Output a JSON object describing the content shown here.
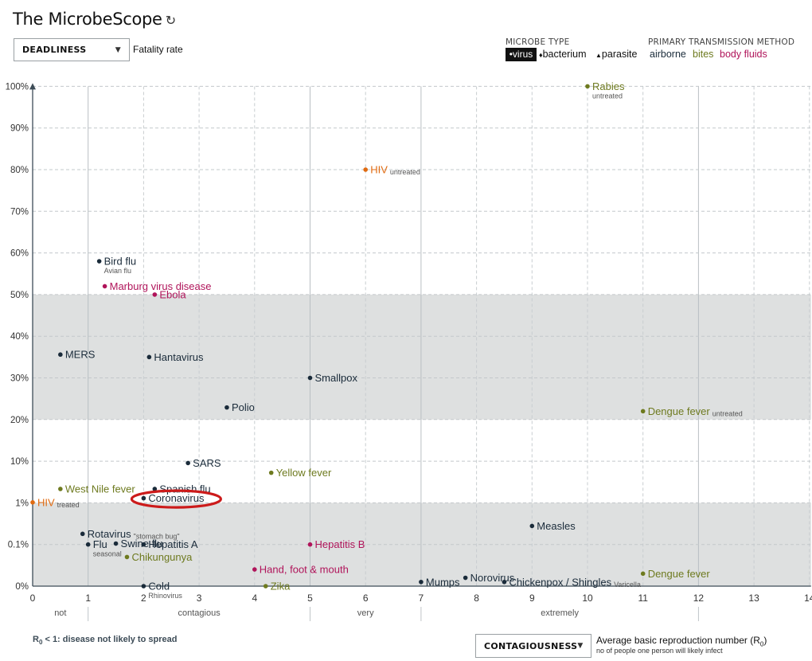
{
  "header": {
    "title": "The MicrobeScope",
    "refresh_icon": "↻"
  },
  "top_control": {
    "dropdown_value": "DEADLINESS",
    "label": "Fatality rate"
  },
  "legend": {
    "type_heading": "MICROBE TYPE",
    "types": [
      {
        "symbol": "•",
        "label": "virus"
      },
      {
        "symbol": "♦",
        "label": "bacterium"
      },
      {
        "symbol": "▲",
        "label": "parasite"
      }
    ],
    "transmission_heading": "PRIMARY TRANSMISSION METHOD",
    "transmissions": [
      {
        "label": "airborne",
        "color": "#1a2b3a"
      },
      {
        "label": "bites",
        "color": "#6e7a1f"
      },
      {
        "label": "body fluids",
        "color": "#b0145a"
      }
    ]
  },
  "bottom_control": {
    "dropdown_value": "CONTAGIOUSNESS",
    "label": "Average basic reproduction number (R",
    "label_sub": "0",
    "label_tail": ")",
    "sub_label": "no of people one person will likely infect"
  },
  "footnote": {
    "prefix": "R",
    "sub": "0",
    "text": " < 1: disease not likely to spread"
  },
  "chart_data": {
    "type": "scatter",
    "x_axis": {
      "range": [
        0,
        14
      ],
      "ticks": [
        "0",
        "1",
        "2",
        "3",
        "4",
        "5",
        "6",
        "7",
        "8",
        "9",
        "10",
        "11",
        "12",
        "13",
        "14"
      ],
      "category_labels": [
        {
          "text": "not",
          "at": 0.5
        },
        {
          "text": "contagious",
          "at": 3
        },
        {
          "text": "very",
          "at": 6
        },
        {
          "text": "extremely",
          "at": 9.5
        }
      ],
      "category_separators": [
        1,
        5,
        7,
        12
      ]
    },
    "y_axis": {
      "ticks": [
        "0%",
        "0.1%",
        "1%",
        "10%",
        "20%",
        "30%",
        "40%",
        "50%",
        "60%",
        "70%",
        "80%",
        "90%",
        "100%"
      ],
      "shaded_bands": [
        [
          0,
          1
        ],
        [
          20,
          50
        ]
      ]
    },
    "colors": {
      "airborne": "#1a2b3a",
      "bites": "#6e7a1f",
      "body_fluids": "#b0145a",
      "hiv": "#e06a10",
      "highlight": "#cc1b1b"
    },
    "points": [
      {
        "name": "Rabies",
        "note": "untreated",
        "x": 10,
        "y": 100,
        "method": "bites",
        "note_below": true
      },
      {
        "name": "HIV",
        "note": "untreated",
        "x": 6,
        "y": 80,
        "method": "hiv"
      },
      {
        "name": "Bird flu",
        "note": "Avian flu",
        "x": 1.2,
        "y": 58,
        "method": "airborne",
        "note_below": true
      },
      {
        "name": "Marburg virus disease",
        "x": 1.3,
        "y": 52,
        "method": "body_fluids"
      },
      {
        "name": "Ebola",
        "x": 2.2,
        "y": 50,
        "method": "body_fluids"
      },
      {
        "name": "MERS",
        "x": 0.5,
        "y": 35.6,
        "method": "airborne"
      },
      {
        "name": "Hantavirus",
        "x": 2.1,
        "y": 35,
        "method": "airborne"
      },
      {
        "name": "Smallpox",
        "x": 5,
        "y": 30,
        "method": "airborne"
      },
      {
        "name": "Polio",
        "x": 3.5,
        "y": 22.9,
        "method": "airborne"
      },
      {
        "name": "Dengue fever",
        "note": "untreated",
        "x": 11,
        "y": 22,
        "method": "bites"
      },
      {
        "name": "SARS",
        "x": 2.8,
        "y": 9.6,
        "method": "airborne"
      },
      {
        "name": "Yellow fever",
        "x": 4.3,
        "y": 7.5,
        "method": "bites"
      },
      {
        "name": "West Nile fever",
        "x": 0.5,
        "y": 4,
        "method": "bites"
      },
      {
        "name": "Spanish flu",
        "x": 2.2,
        "y": 4,
        "method": "airborne"
      },
      {
        "name": "Coronavirus",
        "x": 2,
        "y": 2,
        "method": "airborne",
        "highlight": true
      },
      {
        "name": "HIV",
        "note": "treated",
        "x": 0,
        "y": 1.1,
        "method": "hiv"
      },
      {
        "name": "Measles",
        "x": 9,
        "y": 0.5,
        "method": "airborne"
      },
      {
        "name": "Rotavirus",
        "note": "\"stomach bug\"",
        "x": 0.9,
        "y": 0.33,
        "method": "airborne"
      },
      {
        "name": "Swine flu",
        "x": 1.5,
        "y": 0.12,
        "method": "airborne"
      },
      {
        "name": "Hepatitis A",
        "x": 2,
        "y": 0.1,
        "method": "airborne"
      },
      {
        "name": "Flu",
        "note": "seasonal",
        "x": 1,
        "y": 0.1,
        "method": "airborne",
        "note_below": true
      },
      {
        "name": "Chikungunya",
        "x": 1.7,
        "y": 0.07,
        "method": "bites"
      },
      {
        "name": "Hepatitis B",
        "x": 5,
        "y": 0.1,
        "method": "body_fluids"
      },
      {
        "name": "Hand, foot & mouth",
        "x": 4,
        "y": 0.04,
        "method": "body_fluids"
      },
      {
        "name": "Dengue fever",
        "x": 11,
        "y": 0.03,
        "method": "bites"
      },
      {
        "name": "Norovirus",
        "x": 7.8,
        "y": 0.02,
        "method": "airborne"
      },
      {
        "name": "Mumps",
        "x": 7,
        "y": 0.01,
        "method": "airborne"
      },
      {
        "name": "Chickenpox / Shingles",
        "note": "Varicella",
        "x": 8.5,
        "y": 0.01,
        "method": "airborne"
      },
      {
        "name": "Cold",
        "note": "Rhinovirus",
        "x": 2,
        "y": 0,
        "method": "airborne",
        "note_below": true
      },
      {
        "name": "Zika",
        "x": 4.2,
        "y": 0,
        "method": "bites"
      }
    ]
  }
}
